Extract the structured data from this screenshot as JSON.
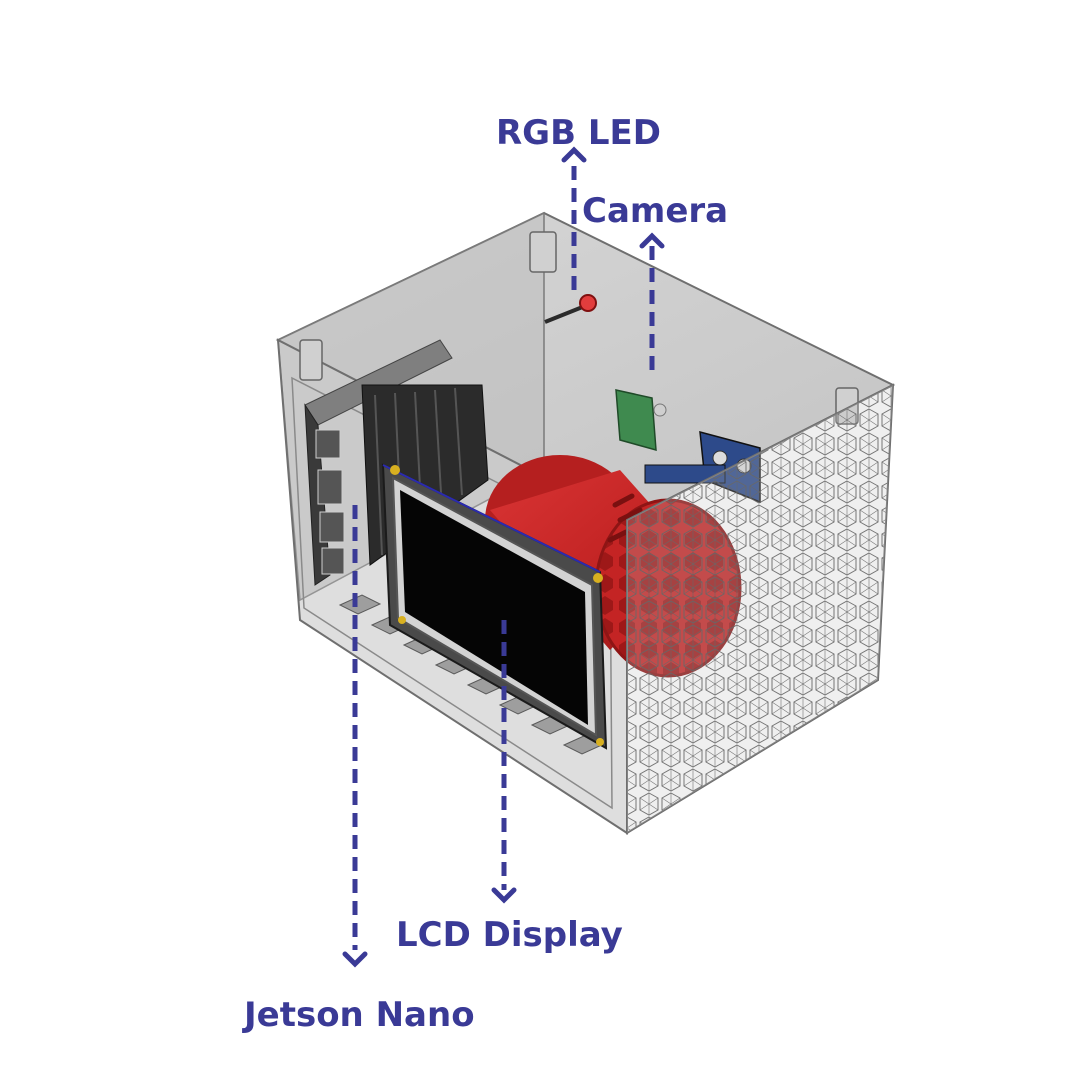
{
  "labels": {
    "rgb_led": "RGB LED",
    "camera": "Camera",
    "lcd_display": "LCD Display",
    "jetson_nano": "Jetson Nano"
  },
  "colors": {
    "label": "#3a3a96",
    "arrow": "#3a3a96",
    "enclosure": "#b9b9b9",
    "enclosure_edge": "#6f6f6f",
    "speaker": "#c42424",
    "screen": "#050505",
    "camera_board": "#3f8a4f",
    "sensor_board": "#2d4a8a",
    "heatsink": "#2b2b2b"
  }
}
